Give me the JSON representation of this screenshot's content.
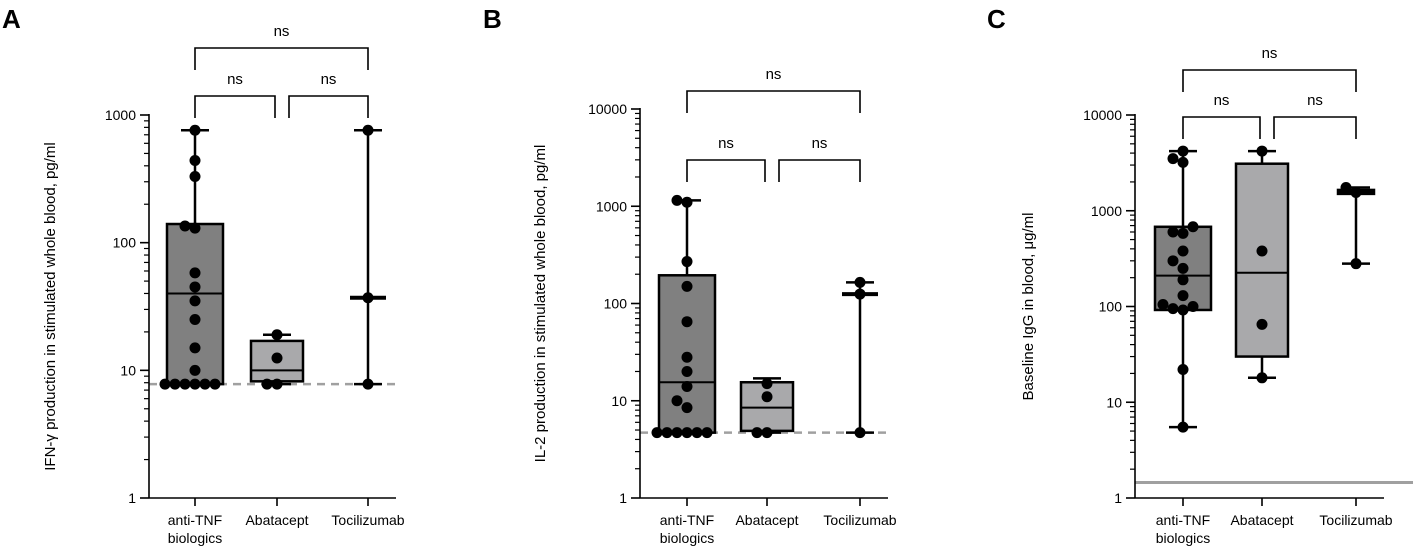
{
  "panels": [
    {
      "letter": "A",
      "chart_data": {
        "type": "box",
        "scale": "log",
        "ylabel": "IFN-γ production in stimulated whole blood, pg/ml",
        "ylim": [
          1,
          1000
        ],
        "yticks": [
          1,
          10,
          100,
          1000
        ],
        "ytick_labels": [
          "1",
          "10",
          "100",
          "1000"
        ],
        "categories": [
          "anti-TNF biologics",
          "Abatacept",
          "Tocilizumab"
        ],
        "category_lines": [
          [
            "anti-TNF",
            "biologics"
          ],
          [
            "Abatacept"
          ],
          [
            "Tocilizumab"
          ]
        ],
        "groups": [
          {
            "min": 7.8,
            "q1": 7.8,
            "median": 40,
            "q3": 140,
            "max": 760,
            "points": [
              7.8,
              7.8,
              7.8,
              7.8,
              7.8,
              7.8,
              10,
              15,
              25,
              35,
              45,
              58,
              130,
              135,
              330,
              440,
              760
            ]
          },
          {
            "min": 7.8,
            "q1": 8.2,
            "median": 10,
            "q3": 17,
            "max": 19,
            "points": [
              7.8,
              7.8,
              12.5,
              19
            ]
          },
          {
            "min": 7.8,
            "q1": 37,
            "median": 37,
            "q3": 37,
            "max": 760,
            "points": [
              7.8,
              37,
              760
            ]
          }
        ],
        "box_colors": [
          "#808080",
          "#a9a9ab",
          "#ffffff"
        ],
        "reference_line": {
          "value": 7.8,
          "style": "dashed",
          "color": "#a0a0a0"
        },
        "comparisons": [
          {
            "from": 0,
            "to": 2,
            "label": "ns"
          },
          {
            "from": 0,
            "to": 1,
            "label": "ns"
          },
          {
            "from": 1,
            "to": 2,
            "label": "ns"
          }
        ]
      }
    },
    {
      "letter": "B",
      "chart_data": {
        "type": "box",
        "scale": "log",
        "ylabel": "IL-2 production in stimulated whole blood, pg/ml",
        "ylim": [
          1,
          10000
        ],
        "yticks": [
          1,
          10,
          100,
          1000,
          10000
        ],
        "ytick_labels": [
          "1",
          "10",
          "100",
          "1000",
          "10000"
        ],
        "categories": [
          "anti-TNF biologics",
          "Abatacept",
          "Tocilizumab"
        ],
        "category_lines": [
          [
            "anti-TNF",
            "biologics"
          ],
          [
            "Abatacept"
          ],
          [
            "Tocilizumab"
          ]
        ],
        "groups": [
          {
            "min": 4.7,
            "q1": 4.7,
            "median": 15.5,
            "q3": 195,
            "max": 1150,
            "points": [
              4.7,
              4.7,
              4.7,
              4.7,
              4.7,
              4.7,
              8.5,
              10,
              14,
              20,
              28,
              65,
              150,
              270,
              1100,
              1150
            ]
          },
          {
            "min": 4.7,
            "q1": 4.9,
            "median": 8.5,
            "q3": 15.5,
            "max": 17,
            "points": [
              4.7,
              4.7,
              11,
              15
            ]
          },
          {
            "min": 4.7,
            "q1": 125,
            "median": 125,
            "q3": 125,
            "max": 165,
            "points": [
              4.7,
              125,
              165
            ]
          }
        ],
        "box_colors": [
          "#808080",
          "#a9a9ab",
          "#ffffff"
        ],
        "reference_line": {
          "value": 4.7,
          "style": "dashed",
          "color": "#a0a0a0"
        },
        "comparisons": [
          {
            "from": 0,
            "to": 2,
            "label": "ns"
          },
          {
            "from": 0,
            "to": 1,
            "label": "ns"
          },
          {
            "from": 1,
            "to": 2,
            "label": "ns"
          }
        ]
      }
    },
    {
      "letter": "C",
      "chart_data": {
        "type": "box",
        "scale": "log",
        "ylabel": "Baseline IgG in blood, μg/ml",
        "ylim": [
          1,
          10000
        ],
        "yticks": [
          1,
          10,
          100,
          1000,
          10000
        ],
        "ytick_labels": [
          "1",
          "10",
          "100",
          "1000",
          "10000"
        ],
        "categories": [
          "anti-TNF biologics",
          "Abatacept",
          "Tocilizumab"
        ],
        "category_lines": [
          [
            "anti-TNF",
            "biologics"
          ],
          [
            "Abatacept"
          ],
          [
            "Tocilizumab"
          ]
        ],
        "groups": [
          {
            "min": 5.5,
            "q1": 92,
            "median": 210,
            "q3": 680,
            "max": 4200,
            "points": [
              5.5,
              22,
              92,
              95,
              100,
              105,
              130,
              190,
              250,
              300,
              380,
              580,
              600,
              680,
              3200,
              3500,
              4200
            ]
          },
          {
            "min": 18,
            "q1": 30,
            "median": 225,
            "q3": 3100,
            "max": 4200,
            "points": [
              18,
              65,
              380,
              4200
            ]
          },
          {
            "min": 280,
            "q1": 1500,
            "median": 1550,
            "q3": 1650,
            "max": 1750,
            "points": [
              280,
              1550,
              1750
            ]
          }
        ],
        "box_colors": [
          "#808080",
          "#a9a9ab",
          "#ffffff"
        ],
        "reference_line": {
          "value": 1.45,
          "style": "solid",
          "color": "#a0a0a0"
        },
        "comparisons": [
          {
            "from": 0,
            "to": 2,
            "label": "ns"
          },
          {
            "from": 0,
            "to": 1,
            "label": "ns"
          },
          {
            "from": 1,
            "to": 2,
            "label": "ns"
          }
        ]
      }
    }
  ]
}
